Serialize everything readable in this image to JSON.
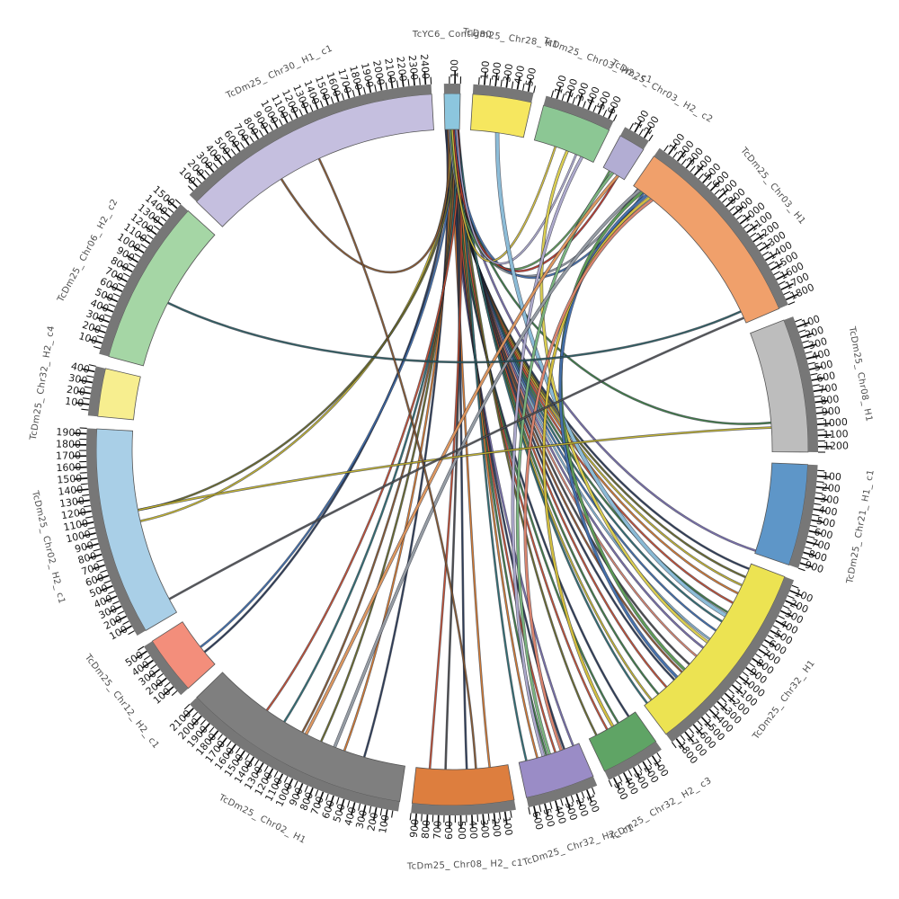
{
  "chart_data": {
    "type": "chord",
    "title": "",
    "layout": {
      "background": "#ffffff",
      "tick_interval_major": 100,
      "tick_interval_minor": 50,
      "gap_degrees": 2,
      "start_angle": -1.3,
      "tick_strip_color": "#777777",
      "tick_color": "#111111",
      "tick_label_color": "#1a1a1a",
      "segment_label_color": "#4d4d4d"
    },
    "segments": [
      {
        "name": "TcYC6_Contig80",
        "color": "#8cc6de",
        "length": 150
      },
      {
        "name": "TcDm25_Chr28_H1",
        "color": "#f6e75f",
        "length": 550
      },
      {
        "name": "TcDm25_Chr03_H2_c1",
        "color": "#8cc794",
        "length": 650
      },
      {
        "name": "TcDm25_Chr03_H2_c2",
        "color": "#b2add3",
        "length": 250
      },
      {
        "name": "TcDm25_Chr03_H1",
        "color": "#f0a06b",
        "length": 1850
      },
      {
        "name": "TcDm25_Chr08_H1",
        "color": "#bdbdbd",
        "length": 1250
      },
      {
        "name": "TcDm25_Chr21_H1_c1",
        "color": "#5e96c8",
        "length": 950
      },
      {
        "name": "TcDm25_Chr32_H1",
        "color": "#ece352",
        "length": 1850
      },
      {
        "name": "TcDm25_Chr32_H2_c3",
        "color": "#5fa465",
        "length": 550
      },
      {
        "name": "TcDm25_Chr32_H2_c1",
        "color": "#9a8cc6",
        "length": 650
      },
      {
        "name": "TcDm25_Chr08_H2_c1",
        "color": "#dd7e3e",
        "length": 950
      },
      {
        "name": "TcDm25_Chr02_H1",
        "color": "#7f7f7f",
        "length": 2150
      },
      {
        "name": "TcDm25_Chr12_H2_c1",
        "color": "#f38e7b",
        "length": 550
      },
      {
        "name": "TcDm25_Chr02_H2_c1",
        "color": "#a9cfe7",
        "length": 1950
      },
      {
        "name": "TcDm25_Chr32_H2_c4",
        "color": "#f7ee8f",
        "length": 450
      },
      {
        "name": "TcDm25_Chr06_H2_c2",
        "color": "#a5d6a5",
        "length": 1550
      },
      {
        "name": "TcDm25_Chr30_H1_c1",
        "color": "#c5bfdf",
        "length": 2450
      }
    ],
    "links": [
      {
        "s": "TcYC6_Contig80",
        "sf": 0.06,
        "t": "TcDm25_Chr32_H1",
        "tf": 0.03,
        "c": "#2b3a55",
        "r": "hub"
      },
      {
        "s": "TcYC6_Contig80",
        "sf": 0.11,
        "t": "TcDm25_Chr32_H1",
        "tf": 0.08,
        "c": "#6b6b2a",
        "r": "hub"
      },
      {
        "s": "TcYC6_Contig80",
        "sf": 0.16,
        "t": "TcDm25_Chr32_H1",
        "tf": 0.13,
        "c": "#c8b72e",
        "r": "hub"
      },
      {
        "s": "TcYC6_Contig80",
        "sf": 0.21,
        "t": "TcDm25_Chr32_H1",
        "tf": 0.18,
        "c": "#d97b2f",
        "r": "hub"
      },
      {
        "s": "TcYC6_Contig80",
        "sf": 0.26,
        "t": "TcDm25_Chr32_H1",
        "tf": 0.24,
        "c": "#c94f32",
        "r": "hub"
      },
      {
        "s": "TcYC6_Contig80",
        "sf": 0.31,
        "t": "TcDm25_Chr32_H1",
        "tf": 0.3,
        "c": "#3f7d45",
        "r": "hub"
      },
      {
        "s": "TcYC6_Contig80",
        "sf": 0.36,
        "t": "TcDm25_Chr32_H1",
        "tf": 0.36,
        "c": "#2e6f73",
        "r": "hub"
      },
      {
        "s": "TcYC6_Contig80",
        "sf": 0.41,
        "t": "TcDm25_Chr32_H1",
        "tf": 0.42,
        "c": "#3f6fae",
        "r": "hub"
      },
      {
        "s": "TcYC6_Contig80",
        "sf": 0.46,
        "t": "TcDm25_Chr32_H1",
        "tf": 0.48,
        "c": "#86b7d6",
        "r": "hub"
      },
      {
        "s": "TcYC6_Contig80",
        "sf": 0.51,
        "t": "TcDm25_Chr32_H1",
        "tf": 0.54,
        "c": "#7a6fae",
        "r": "hub"
      },
      {
        "s": "TcYC6_Contig80",
        "sf": 0.56,
        "t": "TcDm25_Chr32_H1",
        "tf": 0.6,
        "c": "#e2876f",
        "r": "hub"
      },
      {
        "s": "TcYC6_Contig80",
        "sf": 0.61,
        "t": "TcDm25_Chr32_H1",
        "tf": 0.66,
        "c": "#4a4a4a",
        "r": "hub"
      },
      {
        "s": "TcYC6_Contig80",
        "sf": 0.66,
        "t": "TcDm25_Chr32_H1",
        "tf": 0.72,
        "c": "#95552e",
        "r": "hub"
      },
      {
        "s": "TcYC6_Contig80",
        "sf": 0.71,
        "t": "TcDm25_Chr32_H1",
        "tf": 0.78,
        "c": "#2b3a55",
        "r": "hub"
      },
      {
        "s": "TcYC6_Contig80",
        "sf": 0.76,
        "t": "TcDm25_Chr32_H1",
        "tf": 0.84,
        "c": "#c94f32",
        "r": "hub"
      },
      {
        "s": "TcYC6_Contig80",
        "sf": 0.81,
        "t": "TcDm25_Chr32_H1",
        "tf": 0.9,
        "c": "#3f7d45",
        "r": "hub"
      },
      {
        "s": "TcYC6_Contig80",
        "sf": 0.86,
        "t": "TcDm25_Chr32_H1",
        "tf": 0.95,
        "c": "#c8b72e",
        "r": "hub"
      },
      {
        "s": "TcYC6_Contig80",
        "sf": 0.91,
        "t": "TcDm25_Chr32_H1",
        "tf": 0.98,
        "c": "#2e6f73",
        "r": "hub"
      },
      {
        "s": "TcYC6_Contig80",
        "sf": 0.2,
        "t": "TcDm25_Chr32_H2_c3",
        "tf": 0.15,
        "c": "#2b3a55",
        "r": "hub"
      },
      {
        "s": "TcYC6_Contig80",
        "sf": 0.4,
        "t": "TcDm25_Chr32_H2_c3",
        "tf": 0.38,
        "c": "#3f7d45",
        "r": "hub"
      },
      {
        "s": "TcYC6_Contig80",
        "sf": 0.6,
        "t": "TcDm25_Chr32_H2_c3",
        "tf": 0.62,
        "c": "#c94f32",
        "r": "hub"
      },
      {
        "s": "TcYC6_Contig80",
        "sf": 0.8,
        "t": "TcDm25_Chr32_H2_c3",
        "tf": 0.85,
        "c": "#6b6b2a",
        "r": "hub"
      },
      {
        "s": "TcYC6_Contig80",
        "sf": 0.15,
        "t": "TcDm25_Chr32_H2_c1",
        "tf": 0.1,
        "c": "#7a6fae",
        "r": "hub"
      },
      {
        "s": "TcYC6_Contig80",
        "sf": 0.3,
        "t": "TcDm25_Chr32_H2_c1",
        "tf": 0.25,
        "c": "#2b3a55",
        "r": "hub"
      },
      {
        "s": "TcYC6_Contig80",
        "sf": 0.45,
        "t": "TcDm25_Chr32_H2_c1",
        "tf": 0.4,
        "c": "#c94f32",
        "r": "hub"
      },
      {
        "s": "TcYC6_Contig80",
        "sf": 0.6,
        "t": "TcDm25_Chr32_H2_c1",
        "tf": 0.55,
        "c": "#3f7d45",
        "r": "hub"
      },
      {
        "s": "TcYC6_Contig80",
        "sf": 0.75,
        "t": "TcDm25_Chr32_H2_c1",
        "tf": 0.7,
        "c": "#d97b2f",
        "r": "hub"
      },
      {
        "s": "TcYC6_Contig80",
        "sf": 0.9,
        "t": "TcDm25_Chr32_H2_c1",
        "tf": 0.88,
        "c": "#2e6f73",
        "r": "hub"
      },
      {
        "s": "TcYC6_Contig80",
        "sf": 0.3,
        "t": "TcDm25_Chr08_H2_c1",
        "tf": 0.2,
        "c": "#d97b2f",
        "r": "hub"
      },
      {
        "s": "TcYC6_Contig80",
        "sf": 0.5,
        "t": "TcDm25_Chr08_H2_c1",
        "tf": 0.45,
        "c": "#2b3a55",
        "r": "hub"
      },
      {
        "s": "TcYC6_Contig80",
        "sf": 0.7,
        "t": "TcDm25_Chr08_H2_c1",
        "tf": 0.68,
        "c": "#4a4a4a",
        "r": "hub"
      },
      {
        "s": "TcYC6_Contig80",
        "sf": 0.9,
        "t": "TcDm25_Chr08_H2_c1",
        "tf": 0.85,
        "c": "#c94f32",
        "r": "hub"
      },
      {
        "s": "TcYC6_Contig80",
        "sf": 0.1,
        "t": "TcDm25_Chr02_H1",
        "tf": 0.2,
        "c": "#2b3a55",
        "r": "hub"
      },
      {
        "s": "TcYC6_Contig80",
        "sf": 0.25,
        "t": "TcDm25_Chr02_H1",
        "tf": 0.3,
        "c": "#d97b2f",
        "r": "hub"
      },
      {
        "s": "TcYC6_Contig80",
        "sf": 0.4,
        "t": "TcDm25_Chr02_H1",
        "tf": 0.42,
        "c": "#6b6b2a",
        "r": "hub"
      },
      {
        "s": "TcYC6_Contig80",
        "sf": 0.55,
        "t": "TcDm25_Chr02_H1",
        "tf": 0.52,
        "c": "#8a5a2e",
        "r": "hub"
      },
      {
        "s": "TcYC6_Contig80",
        "sf": 0.7,
        "t": "TcDm25_Chr02_H1",
        "tf": 0.62,
        "c": "#2e6f73",
        "r": "hub"
      },
      {
        "s": "TcYC6_Contig80",
        "sf": 0.85,
        "t": "TcDm25_Chr02_H1",
        "tf": 0.72,
        "c": "#c94f32",
        "r": "hub"
      },
      {
        "s": "TcYC6_Contig80",
        "sf": 0.25,
        "t": "TcDm25_Chr12_H2_c1",
        "tf": 0.3,
        "c": "#2b3a55",
        "r": "hub"
      },
      {
        "s": "TcYC6_Contig80",
        "sf": 0.45,
        "t": "TcDm25_Chr12_H2_c1",
        "tf": 0.42,
        "c": "#3f6fae",
        "r": "hub"
      },
      {
        "s": "TcYC6_Contig80",
        "sf": 0.35,
        "t": "TcDm25_Chr02_H2_c1",
        "tf": 0.52,
        "c": "#c8b72e",
        "r": "hub"
      },
      {
        "s": "TcYC6_Contig80",
        "sf": 0.55,
        "t": "TcDm25_Chr02_H2_c1",
        "tf": 0.58,
        "c": "#6b6b2a",
        "r": "hub"
      },
      {
        "s": "TcYC6_Contig80",
        "sf": 0.6,
        "t": "TcDm25_Chr21_H1_c1",
        "tf": 0.97,
        "c": "#7a6fae",
        "r": "hub"
      },
      {
        "s": "TcYC6_Contig80",
        "sf": 0.5,
        "t": "TcDm25_Chr08_H1",
        "tf": 0.76,
        "c": "#3f7d45",
        "r": "hub"
      },
      {
        "s": "TcYC6_Contig80",
        "sf": 0.2,
        "t": "TcDm25_Chr30_H1_c1",
        "tf": 0.32,
        "c": "#8a5a2e",
        "r": "hub"
      },
      {
        "s": "TcYC6_Contig80",
        "sf": 0.3,
        "t": "TcDm25_Chr03_H1",
        "tf": 0.03,
        "c": "#9aa0a8",
        "r": "hub"
      },
      {
        "s": "TcYC6_Contig80",
        "sf": 0.7,
        "t": "TcDm25_Chr03_H1",
        "tf": 0.07,
        "c": "#4472b0",
        "r": "hub"
      },
      {
        "s": "TcYC6_Contig80",
        "sf": 0.4,
        "t": "TcDm25_Chr03_H2_c2",
        "tf": 0.3,
        "c": "#5f9e55",
        "r": "hub"
      },
      {
        "s": "TcYC6_Contig80",
        "sf": 0.6,
        "t": "TcDm25_Chr03_H2_c2",
        "tf": 0.7,
        "c": "#c0392b",
        "r": "hub"
      },
      {
        "s": "TcYC6_Contig80",
        "sf": 0.5,
        "t": "TcDm25_Chr03_H2_c1",
        "tf": 0.35,
        "c": "#d9c33c",
        "r": "hub"
      },
      {
        "s": "TcYC6_Contig80",
        "sf": 0.8,
        "t": "TcDm25_Chr03_H2_c1",
        "tf": 0.7,
        "c": "#b3aed3",
        "r": "hub"
      },
      {
        "s": "TcDm25_Chr28_H1",
        "sf": 0.5,
        "t": "TcDm25_Chr32_H1",
        "tf": 0.32,
        "c": "#8fc1dd",
        "r": "waist",
        "w": 3.5
      },
      {
        "s": "TcDm25_Chr03_H2_c1",
        "sf": 0.55,
        "t": "TcDm25_Chr32_H1",
        "tf": 0.5,
        "c": "#e3d44f",
        "r": "waist",
        "w": 2.5
      },
      {
        "s": "TcDm25_Chr03_H2_c1",
        "sf": 0.8,
        "t": "TcDm25_Chr32_H2_c1",
        "tf": 0.6,
        "c": "#b3aed3",
        "r": "waist",
        "w": 2.5
      },
      {
        "s": "TcDm25_Chr03_H2_c2",
        "sf": 0.45,
        "t": "TcDm25_Chr32_H2_c1",
        "tf": 0.5,
        "c": "#7db87f",
        "r": "waist",
        "w": 2.5
      },
      {
        "s": "TcDm25_Chr03_H2_c2",
        "sf": 0.7,
        "t": "TcDm25_Chr02_H1",
        "tf": 0.5,
        "c": "#e59a5f",
        "r": "waist",
        "w": 2.5
      },
      {
        "s": "TcDm25_Chr03_H1",
        "sf": 0.04,
        "t": "TcDm25_Chr02_H1",
        "tf": 0.35,
        "c": "#9aa0a8",
        "r": "waist",
        "w": 2.5
      },
      {
        "s": "TcDm25_Chr03_H1",
        "sf": 0.06,
        "t": "TcDm25_Chr32_H1",
        "tf": 0.7,
        "c": "#5f9e55",
        "r": "waist",
        "w": 2.5
      },
      {
        "s": "TcDm25_Chr03_H1",
        "sf": 0.09,
        "t": "TcDm25_Chr32_H1",
        "tf": 0.76,
        "c": "#4472b0",
        "r": "waist",
        "w": 2.5
      },
      {
        "s": "TcDm25_Chr03_H1",
        "sf": 0.11,
        "t": "TcDm25_Chr32_H2_c3",
        "tf": 0.5,
        "c": "#d9c33c",
        "r": "waist",
        "w": 2.5
      },
      {
        "s": "TcDm25_Chr03_H1",
        "sf": 0.13,
        "t": "TcDm25_Chr32_H2_c1",
        "tf": 0.3,
        "c": "#e2876f",
        "r": "waist",
        "w": 2.5
      },
      {
        "s": "TcDm25_Chr06_H2_c2",
        "sf": 0.45,
        "t": "TcDm25_Chr03_H1",
        "tf": 0.93,
        "c": "#2e5f62",
        "r": "center"
      },
      {
        "s": "TcDm25_Chr02_H2_c1",
        "sf": 0.58,
        "t": "TcDm25_Chr08_H1",
        "tf": 0.8,
        "c": "#c8b72e",
        "r": "center"
      },
      {
        "s": "TcDm25_Chr30_H1_c1",
        "sf": 0.5,
        "t": "TcDm25_Chr08_H2_c1",
        "tf": 0.35,
        "c": "#8a5a2e",
        "r": "center"
      },
      {
        "s": "TcDm25_Chr02_H2_c1",
        "sf": 0.08,
        "t": "TcDm25_Chr03_H1",
        "tf": 0.97,
        "c": "#555555",
        "r": "center"
      }
    ]
  }
}
